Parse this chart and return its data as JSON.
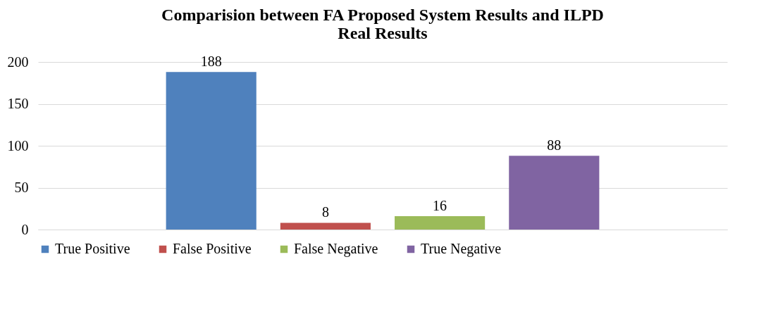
{
  "chart_data": {
    "type": "bar",
    "title": "Comparision between  FA Proposed System Results and ILPD Real Results",
    "categories": [
      null
    ],
    "series": [
      {
        "name": "True Positive",
        "color": "#4f81bd",
        "values": [
          188
        ]
      },
      {
        "name": "False Positive",
        "color": "#c0504d",
        "values": [
          8
        ]
      },
      {
        "name": "False Negative",
        "color": "#9bbb59",
        "values": [
          16
        ]
      },
      {
        "name": "True Negative",
        "color": "#8064a2",
        "values": [
          88
        ]
      }
    ],
    "ylim": [
      0,
      200
    ],
    "yticks": [
      0,
      50,
      100,
      150,
      200
    ],
    "grid": "y",
    "legend": "bottom",
    "data_labels": true,
    "tick_labels": "y"
  }
}
